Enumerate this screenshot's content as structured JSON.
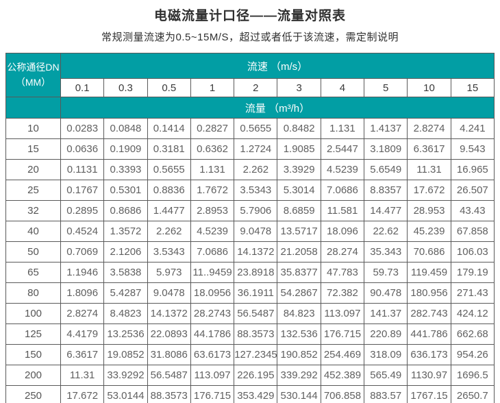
{
  "page": {
    "title": "电磁流量计口径——流量对照表",
    "subtitle": "常规测量流速为0.5~15M/S，超过或者低于该流速，需定制说明"
  },
  "colors": {
    "teal": "#029ea4",
    "border": "#595959",
    "data_text": "#606060",
    "header_text": "#ffffff",
    "title_text": "#2f2f2f"
  },
  "table": {
    "corner_header_line1": "公称通径DN",
    "corner_header_line2": "（MM）",
    "speed_header": "流速 （m/s）",
    "flow_header": "流量 （m³/h）",
    "speed_columns": [
      "0.1",
      "0.3",
      "0.5",
      "1",
      "2",
      "3",
      "4",
      "5",
      "10",
      "15"
    ],
    "rows": [
      {
        "dn": "10",
        "values": [
          "0.0283",
          "0.0848",
          "0.1414",
          "0.2827",
          "0.5655",
          "0.8482",
          "1.131",
          "1.4137",
          "2.8274",
          "4.241"
        ]
      },
      {
        "dn": "15",
        "values": [
          "0.0636",
          "0.1909",
          "0.3181",
          "0.6362",
          "1.2724",
          "1.9085",
          "2.5447",
          "3.1809",
          "6.3617",
          "9.543"
        ]
      },
      {
        "dn": "20",
        "values": [
          "0.1131",
          "0.3393",
          "0.5655",
          "1.131",
          "2.262",
          "3.3929",
          "4.5239",
          "5.6549",
          "11.31",
          "16.965"
        ]
      },
      {
        "dn": "25",
        "values": [
          "0.1767",
          "0.5301",
          "0.8836",
          "1.7672",
          "3.5343",
          "5.3014",
          "7.0686",
          "8.8357",
          "17.672",
          "26.507"
        ]
      },
      {
        "dn": "32",
        "values": [
          "0.2895",
          "0.8686",
          "1.4477",
          "2.8953",
          "5.7906",
          "8.6859",
          "11.581",
          "14.477",
          "28.953",
          "43.43"
        ]
      },
      {
        "dn": "40",
        "values": [
          "0.4524",
          "1.3572",
          "2.262",
          "4.5239",
          "9.0478",
          "13.5717",
          "18.096",
          "22.62",
          "45.239",
          "67.858"
        ]
      },
      {
        "dn": "50",
        "values": [
          "0.7069",
          "2.1206",
          "3.5343",
          "7.0686",
          "14.1372",
          "21.2058",
          "28.274",
          "35.343",
          "70.686",
          "106.03"
        ]
      },
      {
        "dn": "65",
        "values": [
          "1.1946",
          "3.5838",
          "5.973",
          "11..9459",
          "23.8918",
          "35.8377",
          "47.783",
          "59.73",
          "119.459",
          "179.19"
        ]
      },
      {
        "dn": "80",
        "values": [
          "1.8096",
          "5.4287",
          "9.0478",
          "18.0956",
          "36.1911",
          "54.2867",
          "72.382",
          "90.478",
          "180.956",
          "271.43"
        ]
      },
      {
        "dn": "100",
        "values": [
          "2.8274",
          "8.4823",
          "14.1372",
          "28.2743",
          "56.5487",
          "84.823",
          "113.097",
          "141.37",
          "282.743",
          "424.12"
        ]
      },
      {
        "dn": "125",
        "values": [
          "4.4179",
          "13.2536",
          "22.0893",
          "44.1786",
          "88.3573",
          "132.536",
          "176.715",
          "220.89",
          "441.786",
          "662.68"
        ]
      },
      {
        "dn": "150",
        "values": [
          "6.3617",
          "19.0852",
          "31.8086",
          "63.6173",
          "127.2345",
          "190.852",
          "254.469",
          "318.09",
          "636.173",
          "954.26"
        ]
      },
      {
        "dn": "200",
        "values": [
          "11.31",
          "33.9292",
          "56.5487",
          "113.097",
          "226.195",
          "339.292",
          "452.389",
          "565.49",
          "1130.97",
          "1696.5"
        ]
      },
      {
        "dn": "250",
        "values": [
          "17.672",
          "53.0144",
          "88.3573",
          "176.715",
          "353.429",
          "530.144",
          "706.858",
          "883.57",
          "1767.15",
          "2650.7"
        ]
      }
    ]
  }
}
